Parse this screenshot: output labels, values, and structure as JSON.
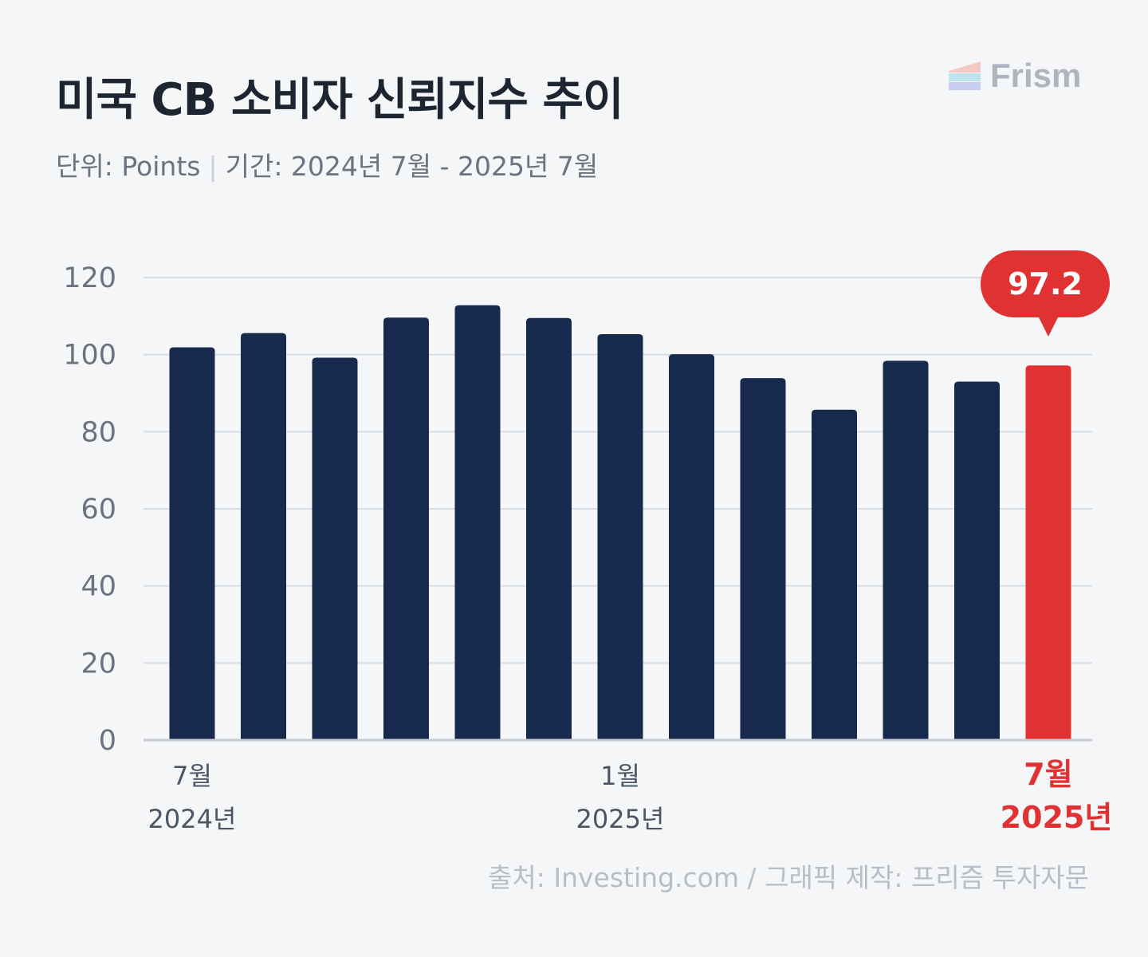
{
  "title": "미국 CB 소비자 신뢰지수 추이",
  "subtitle": {
    "unit": "단위: Points",
    "separator": "|",
    "period": "기간: 2024년 7월 - 2025년 7월"
  },
  "logo": {
    "text": "Frism",
    "icon": "frism-logo-icon"
  },
  "source": "출처: Investing.com  / 그래픽 제작: 프리즘 투자자문",
  "colors": {
    "bar": "#172a4e",
    "highlight": "#e03232",
    "grid": "#d7dbe2",
    "axis": "#c6cbd4"
  },
  "chart_data": {
    "type": "bar",
    "categories": [
      "2024-07",
      "2024-08",
      "2024-09",
      "2024-10",
      "2024-11",
      "2024-12",
      "2025-01",
      "2025-02",
      "2025-03",
      "2025-04",
      "2025-05",
      "2025-06",
      "2025-07"
    ],
    "values": [
      101.9,
      105.6,
      99.2,
      109.6,
      112.8,
      109.5,
      105.3,
      100.1,
      93.9,
      85.7,
      98.4,
      93.0,
      97.2
    ],
    "highlight_index": 12,
    "callout": "97.2",
    "ylim": [
      0,
      120
    ],
    "yticks": [
      "0",
      "20",
      "40",
      "60",
      "80",
      "100",
      "120"
    ],
    "xticks": [
      {
        "index": 0,
        "month": "7월",
        "year": "2024년"
      },
      {
        "index": 6,
        "month": "1월",
        "year": "2025년"
      },
      {
        "index": 12,
        "month": "7월",
        "year": "2025년"
      }
    ],
    "grid": true
  }
}
